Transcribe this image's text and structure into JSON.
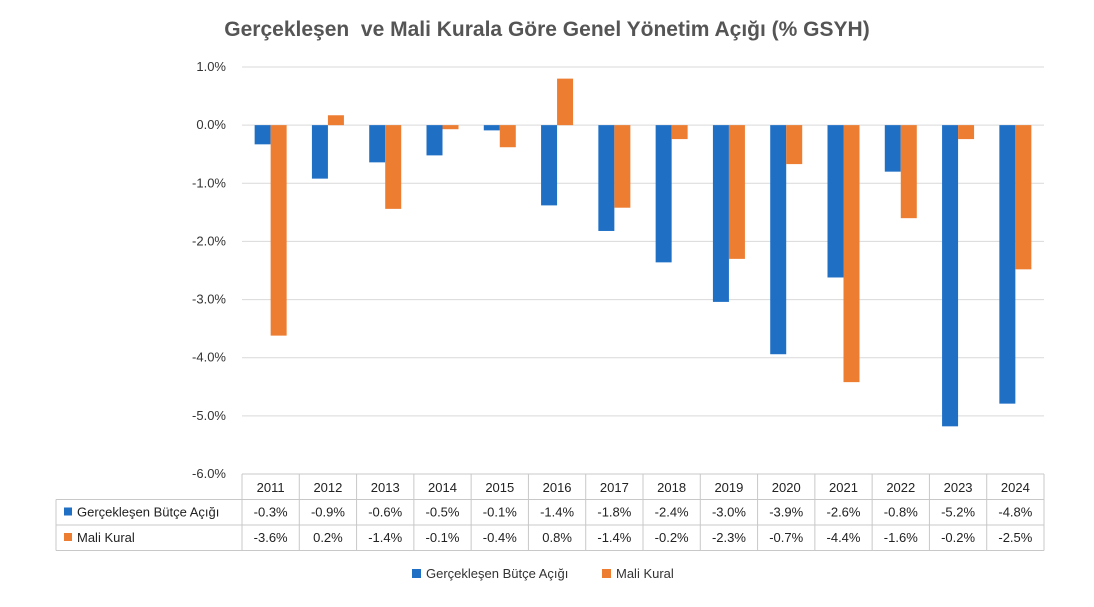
{
  "chart_data": {
    "type": "bar",
    "title": "Gerçekleşen  ve Mali Kurala Göre Genel Yönetim Açığı (% GSYH)",
    "categories": [
      "2011",
      "2012",
      "2013",
      "2014",
      "2015",
      "2016",
      "2017",
      "2018",
      "2019",
      "2020",
      "2021",
      "2022",
      "2023",
      "2024"
    ],
    "series": [
      {
        "name": "Gerçekleşen Bütçe Açığı",
        "color": "#1F6FC5",
        "values": [
          -0.33,
          -0.92,
          -0.64,
          -0.52,
          -0.09,
          -1.38,
          -1.82,
          -2.36,
          -3.04,
          -3.94,
          -2.62,
          -0.8,
          -5.18,
          -4.79
        ],
        "labels": [
          "-0.3%",
          "-0.9%",
          "-0.6%",
          "-0.5%",
          "-0.1%",
          "-1.4%",
          "-1.8%",
          "-2.4%",
          "-3.0%",
          "-3.9%",
          "-2.6%",
          "-0.8%",
          "-5.2%",
          "-4.8%"
        ]
      },
      {
        "name": "Mali Kural",
        "color": "#ED7D31",
        "values": [
          -3.62,
          0.17,
          -1.44,
          -0.07,
          -0.38,
          0.8,
          -1.42,
          -0.24,
          -2.3,
          -0.67,
          -4.42,
          -1.6,
          -0.24,
          -2.48
        ],
        "labels": [
          "-3.6%",
          "0.2%",
          "-1.4%",
          "-0.1%",
          "-0.4%",
          "0.8%",
          "-1.4%",
          "-0.2%",
          "-2.3%",
          "-0.7%",
          "-4.4%",
          "-1.6%",
          "-0.2%",
          "-2.5%"
        ]
      }
    ],
    "ylim": [
      -6.0,
      1.0
    ],
    "yticks": [
      1.0,
      0.0,
      -1.0,
      -2.0,
      -3.0,
      -4.0,
      -5.0,
      -6.0
    ],
    "ytick_labels": [
      "1.0%",
      "0.0%",
      "-1.0%",
      "-2.0%",
      "-3.0%",
      "-4.0%",
      "-5.0%",
      "-6.0%"
    ],
    "grid": true,
    "data_table": true,
    "legend_position": "bottom"
  }
}
